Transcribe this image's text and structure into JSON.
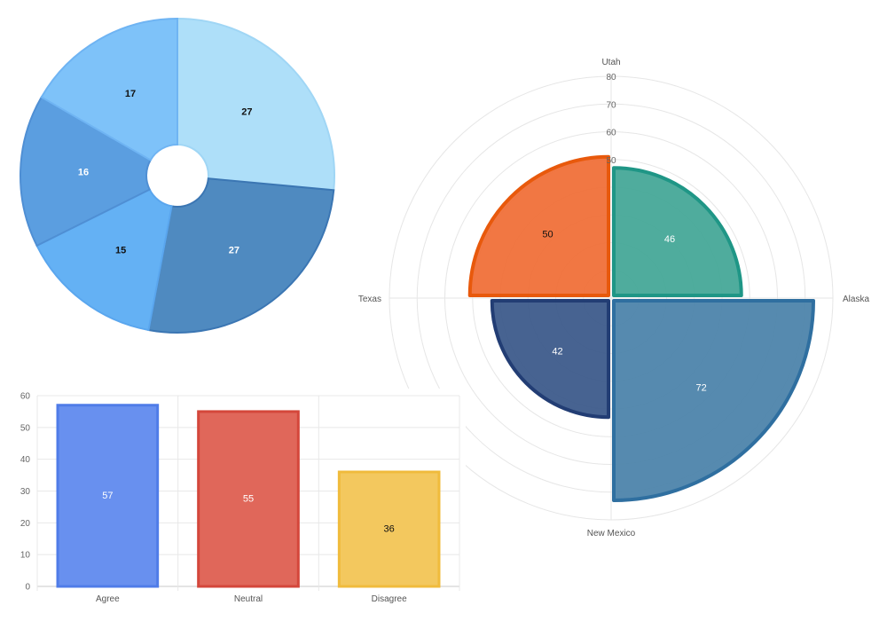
{
  "chart_data": [
    {
      "type": "doughnut",
      "values": [
        27,
        27,
        15,
        16,
        17
      ],
      "colors": [
        "#aedff9",
        "#4f8ac0",
        "#64b1f4",
        "#5b9ee0",
        "#7ec2f9"
      ],
      "border_colors": [
        "#a0d6f5",
        "#3b76b3",
        "#5aa6ee",
        "#4f8fd4",
        "#6fb4f3"
      ],
      "label_colors": [
        "#111111",
        "#ffffff",
        "#111111",
        "#ffffff",
        "#111111"
      ],
      "labels_shown": [
        "27",
        "27",
        "15",
        "16",
        "17"
      ]
    },
    {
      "type": "polarArea",
      "categories": [
        "Utah",
        "Alaska",
        "New Mexico",
        "Texas"
      ],
      "values": [
        46,
        72,
        42,
        50
      ],
      "colors": [
        "#46a898",
        "#4d84ab",
        "#3d5b8b",
        "#f07039"
      ],
      "border_colors": [
        "#1f9686",
        "#2f6fa0",
        "#223d74",
        "#e8590c"
      ],
      "label_colors": [
        "#ffffff",
        "#ffffff",
        "#ffffff",
        "#111111"
      ],
      "r_ticks": [
        10,
        20,
        30,
        40,
        50,
        60,
        70,
        80
      ],
      "r_max": 80,
      "labels_shown": [
        "46",
        "72",
        "42",
        "50"
      ]
    },
    {
      "type": "bar",
      "categories": [
        "Agree",
        "Neutral",
        "Disagree"
      ],
      "values": [
        57,
        55,
        36
      ],
      "colors": [
        "#6890ef",
        "#e0675a",
        "#f3c85e"
      ],
      "border_colors": [
        "#4f7ce8",
        "#d4473b",
        "#f0bb3c"
      ],
      "label_colors": [
        "#ffffff",
        "#ffffff",
        "#111111"
      ],
      "y_ticks": [
        0,
        10,
        20,
        30,
        40,
        50,
        60
      ],
      "ylim": [
        0,
        60
      ],
      "grid": true,
      "labels_shown": [
        "57",
        "55",
        "36"
      ]
    }
  ]
}
